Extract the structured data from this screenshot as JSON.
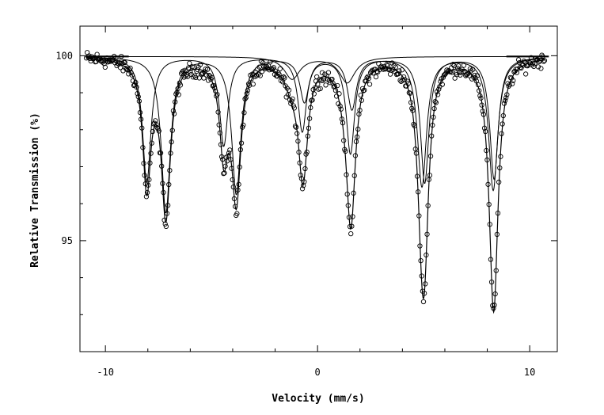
{
  "chart_data": {
    "type": "scatter",
    "title": "",
    "xlabel": "Velocity (mm/s)",
    "ylabel": "Relative Transmission (%)",
    "xlim": [
      -11.2,
      11.3
    ],
    "ylim": [
      92.0,
      100.8
    ],
    "x_ticks": [
      {
        "value": -10,
        "label": "-10"
      },
      {
        "value": 0,
        "label": "0"
      },
      {
        "value": 10,
        "label": "10"
      }
    ],
    "y_ticks": [
      {
        "value": 95,
        "label": "95"
      },
      {
        "value": 100,
        "label": "100"
      }
    ],
    "baseline": 99.98,
    "series": [
      {
        "kind": "measured-points",
        "marker": "open-circle",
        "color": "#000000",
        "x_range": [
          -10.9,
          10.7
        ],
        "noise_amplitude": 0.2
      },
      {
        "kind": "fit-sextet",
        "color": "#000000",
        "lines": [
          {
            "position": -8.05,
            "depth": 3.4,
            "width": 0.24
          },
          {
            "position": -4.42,
            "depth": 2.4,
            "width": 0.24
          },
          {
            "position": -0.72,
            "depth": 2.0,
            "width": 0.24
          },
          {
            "position": 1.55,
            "depth": 2.6,
            "width": 0.24
          },
          {
            "position": 5.05,
            "depth": 3.4,
            "width": 0.24
          },
          {
            "position": 8.32,
            "depth": 3.3,
            "width": 0.24
          }
        ]
      },
      {
        "kind": "fit-sextet",
        "color": "#000000",
        "lines": [
          {
            "position": -7.15,
            "depth": 4.2,
            "width": 0.26
          },
          {
            "position": -3.83,
            "depth": 3.7,
            "width": 0.26
          },
          {
            "position": -0.62,
            "depth": 1.2,
            "width": 0.26
          },
          {
            "position": 1.62,
            "depth": 1.4,
            "width": 0.26
          },
          {
            "position": 4.92,
            "depth": 3.5,
            "width": 0.26
          },
          {
            "position": 8.28,
            "depth": 3.6,
            "width": 0.26
          }
        ]
      },
      {
        "kind": "fit-doublet",
        "color": "#000000",
        "lines": [
          {
            "position": -1.2,
            "depth": 0.6,
            "width": 0.45
          },
          {
            "position": 1.4,
            "depth": 0.7,
            "width": 0.45
          }
        ]
      }
    ],
    "grid": false,
    "legend": "none"
  }
}
